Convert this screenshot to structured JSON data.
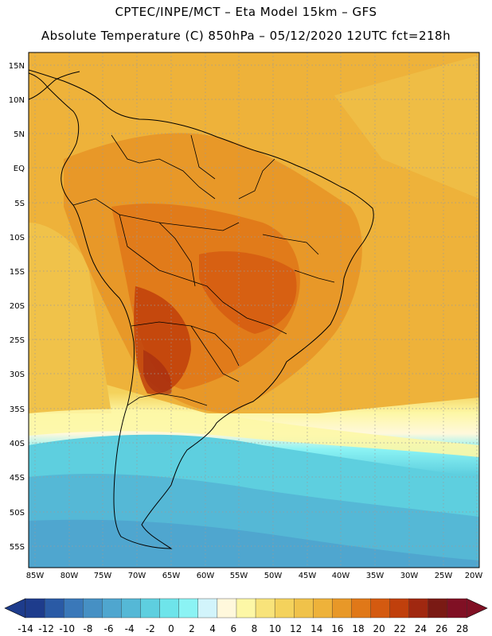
{
  "header": {
    "line1": "CPTEC/INPE/MCT –  Eta Model 15km – GFS",
    "line2": "Absolute Temperature (C) 850hPa – 05/12/2020 12UTC fct=218h"
  },
  "axes": {
    "lat_ticks": [
      "15N",
      "10N",
      "5N",
      "EQ",
      "5S",
      "10S",
      "15S",
      "20S",
      "25S",
      "30S",
      "35S",
      "40S",
      "45S",
      "50S",
      "55S"
    ],
    "lon_ticks": [
      "85W",
      "80W",
      "75W",
      "70W",
      "65W",
      "60W",
      "55W",
      "50W",
      "45W",
      "40W",
      "35W",
      "30W",
      "25W",
      "20W"
    ]
  },
  "colorbar": {
    "labels": [
      "-14",
      "-12",
      "-10",
      "-8",
      "-6",
      "-4",
      "-2",
      "0",
      "2",
      "4",
      "6",
      "8",
      "10",
      "12",
      "14",
      "16",
      "18",
      "20",
      "22",
      "24",
      "26",
      "28"
    ],
    "colors": [
      "#1e3c8c",
      "#2a5aa5",
      "#3a78b9",
      "#4690c4",
      "#4fa6cf",
      "#55b8d6",
      "#5ecfdf",
      "#6ee4ea",
      "#8bf3f4",
      "#d2f4fb",
      "#fff8dc",
      "#fdf7a6",
      "#f8e37a",
      "#f4d25c",
      "#f0c24a",
      "#eeb23a",
      "#e89828",
      "#e07818",
      "#d45a10",
      "#c0400c",
      "#a02810",
      "#7a1a14",
      "#801024"
    ]
  }
}
